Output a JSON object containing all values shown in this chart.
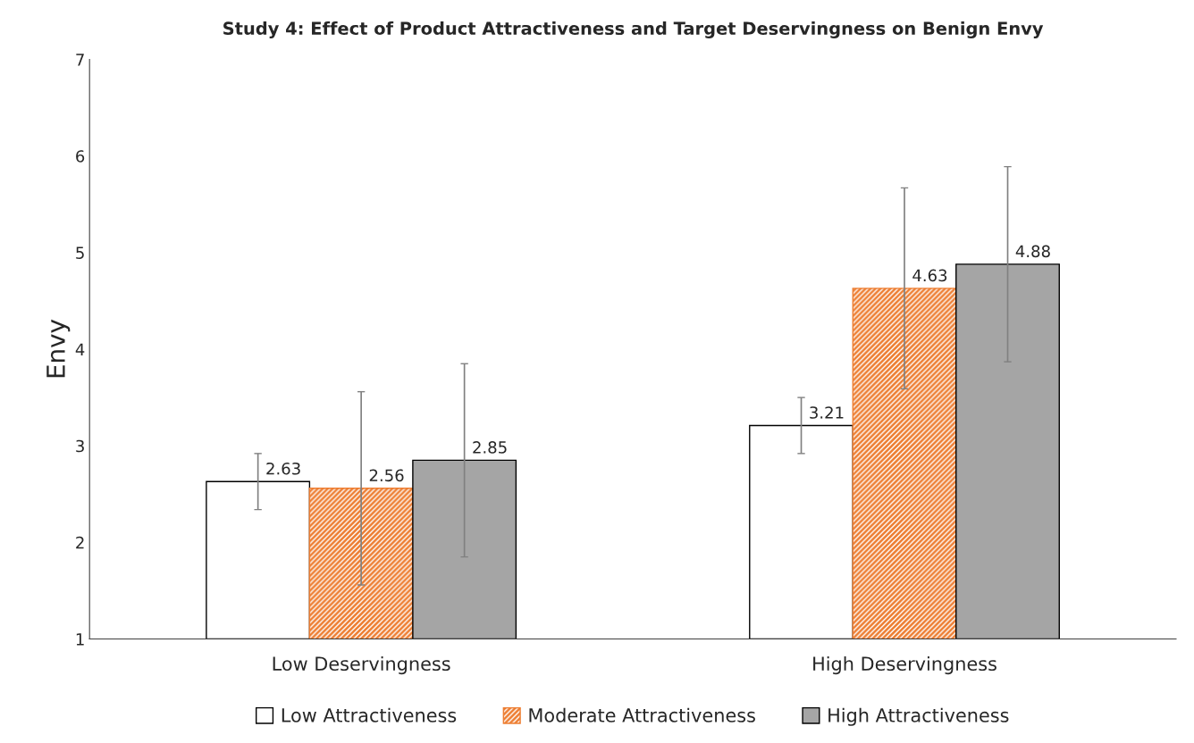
{
  "chart_data": {
    "type": "bar",
    "title": "Study 4: Effect of Product Attractiveness and Target Deservingness on Benign Envy",
    "ylabel": "Envy",
    "categories": [
      "Low Deservingness",
      "High Deservingness"
    ],
    "series": [
      {
        "name": "Low Attractiveness",
        "color": "#ffffff",
        "values": [
          2.63,
          3.21
        ],
        "errors": [
          0.29,
          0.29
        ]
      },
      {
        "name": "Moderate Attractiveness",
        "color": "#ed7d31",
        "values": [
          2.56,
          4.63
        ],
        "errors": [
          1.0,
          1.04
        ]
      },
      {
        "name": "High Attractiveness",
        "color": "#a5a5a5",
        "values": [
          2.85,
          4.88
        ],
        "errors": [
          1.0,
          1.01
        ]
      }
    ],
    "ylim": [
      1,
      7
    ],
    "yticks": [
      1,
      2,
      3,
      4,
      5,
      6,
      7
    ],
    "data_labels": true,
    "grid": false,
    "legend": "bottom"
  }
}
